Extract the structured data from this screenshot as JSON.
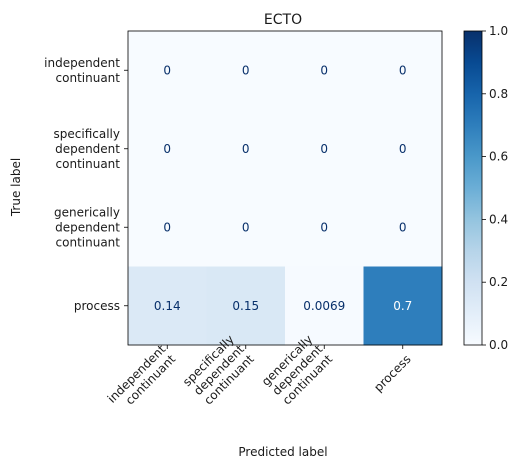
{
  "chart_data": {
    "type": "heatmap",
    "title": "ECTO",
    "xlabel": "Predicted label",
    "ylabel": "True label",
    "x_categories": [
      [
        "independent",
        "continuant"
      ],
      [
        "specifically",
        "dependent",
        "continuant"
      ],
      [
        "generically",
        "dependent",
        "continuant"
      ],
      [
        "process"
      ]
    ],
    "y_categories": [
      [
        "independent",
        "continuant"
      ],
      [
        "specifically",
        "dependent",
        "continuant"
      ],
      [
        "generically",
        "dependent",
        "continuant"
      ],
      [
        "process"
      ]
    ],
    "values": [
      [
        0,
        0,
        0,
        0
      ],
      [
        0,
        0,
        0,
        0
      ],
      [
        0,
        0,
        0,
        0
      ],
      [
        0.14,
        0.15,
        0.0069,
        0.7
      ]
    ],
    "cell_labels": [
      [
        "0",
        "0",
        "0",
        "0"
      ],
      [
        "0",
        "0",
        "0",
        "0"
      ],
      [
        "0",
        "0",
        "0",
        "0"
      ],
      [
        "0.14",
        "0.15",
        "0.0069",
        "0.7"
      ]
    ],
    "colorbar": {
      "min": 0,
      "max": 1,
      "ticks": [
        "0.0",
        "0.2",
        "0.4",
        "0.6",
        "0.8",
        "1.0"
      ],
      "colormap": "Blues"
    }
  }
}
